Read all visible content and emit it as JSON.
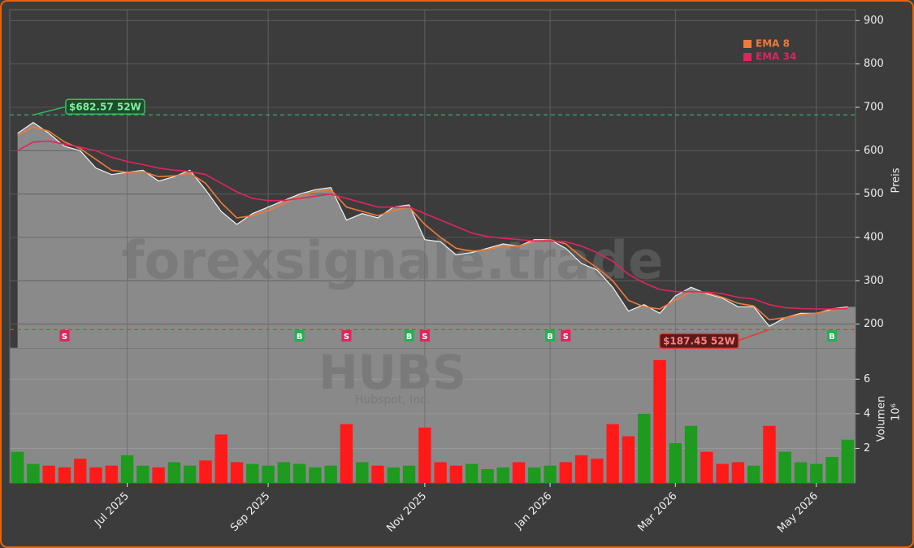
{
  "chart_data": [
    {
      "type": "line",
      "area": true,
      "ticker": "HUBS",
      "company": "Hubspot, Inc.",
      "watermark": "forexsignale.trade",
      "categories": [
        null,
        null,
        null,
        null,
        null,
        null,
        null,
        "Jul 2025",
        null,
        null,
        null,
        null,
        null,
        null,
        null,
        null,
        "Sep 2025",
        null,
        null,
        null,
        null,
        null,
        null,
        null,
        null,
        null,
        "Nov 2025",
        null,
        null,
        null,
        null,
        null,
        null,
        null,
        "Jan 2026",
        null,
        null,
        null,
        null,
        null,
        null,
        null,
        "Mar 2026",
        null,
        null,
        null,
        null,
        null,
        null,
        null,
        null,
        "May 2026",
        null,
        null
      ],
      "series": [
        {
          "name": "Preis",
          "color": "#f2f2f2",
          "values": [
            640,
            665,
            640,
            610,
            600,
            560,
            545,
            550,
            555,
            530,
            540,
            555,
            510,
            460,
            430,
            455,
            470,
            485,
            500,
            510,
            515,
            440,
            455,
            445,
            470,
            475,
            395,
            390,
            360,
            365,
            375,
            385,
            380,
            395,
            395,
            375,
            340,
            325,
            285,
            230,
            245,
            225,
            265,
            285,
            270,
            260,
            240,
            240,
            195,
            215,
            225,
            225,
            235,
            240
          ]
        },
        {
          "name": "EMA 8",
          "color": "#f07a3a",
          "values": [
            635,
            655,
            645,
            620,
            605,
            580,
            555,
            550,
            552,
            540,
            542,
            548,
            525,
            480,
            445,
            450,
            462,
            478,
            495,
            505,
            510,
            470,
            460,
            450,
            462,
            470,
            430,
            400,
            375,
            368,
            372,
            380,
            380,
            390,
            395,
            385,
            355,
            330,
            300,
            255,
            240,
            235,
            255,
            275,
            272,
            262,
            248,
            242,
            210,
            215,
            222,
            225,
            232,
            238
          ]
        },
        {
          "name": "EMA 34",
          "color": "#e0245e",
          "values": [
            600,
            620,
            622,
            615,
            608,
            600,
            585,
            575,
            568,
            560,
            555,
            552,
            545,
            525,
            505,
            490,
            485,
            485,
            490,
            495,
            500,
            490,
            480,
            470,
            470,
            470,
            455,
            440,
            425,
            410,
            402,
            398,
            395,
            392,
            392,
            390,
            380,
            365,
            345,
            315,
            295,
            280,
            275,
            275,
            274,
            270,
            262,
            258,
            245,
            238,
            236,
            235,
            235,
            236
          ]
        }
      ],
      "legend_series": [
        1,
        2
      ],
      "high_52w": {
        "value": 682.57,
        "label": "$682.57 52W",
        "color": "#2fbf5f",
        "index": 1
      },
      "low_52w": {
        "value": 187.45,
        "label": "$187.45 52W",
        "color": "#e53935",
        "index": 48
      },
      "signals": [
        {
          "index": 3,
          "label": "S"
        },
        {
          "index": 18,
          "label": "B"
        },
        {
          "index": 21,
          "label": "S"
        },
        {
          "index": 25,
          "label": "B"
        },
        {
          "index": 26,
          "label": "S"
        },
        {
          "index": 34,
          "label": "B"
        },
        {
          "index": 35,
          "label": "S"
        },
        {
          "index": 52,
          "label": "B"
        }
      ],
      "buy_color": "#22b050",
      "sell_color": "#e0245e",
      "ylabel": "Preis",
      "ylim": [
        145,
        925
      ],
      "yticks": [
        200,
        300,
        400,
        500,
        600,
        700,
        800,
        900
      ],
      "grid": true
    },
    {
      "type": "bar",
      "ylabel": "Volumen",
      "yunit": "10⁶",
      "up_color": "#1e9a1e",
      "down_color": "#ff1a1a",
      "values": [
        1.8,
        1.1,
        1.0,
        0.9,
        1.4,
        0.9,
        1.0,
        1.6,
        1.0,
        0.9,
        1.2,
        1.0,
        1.3,
        2.8,
        1.2,
        1.1,
        1.0,
        1.2,
        1.1,
        0.9,
        1.0,
        3.4,
        1.2,
        1.0,
        0.9,
        1.0,
        3.2,
        1.2,
        1.0,
        1.1,
        0.8,
        0.9,
        1.2,
        0.9,
        1.0,
        1.2,
        1.6,
        1.4,
        3.4,
        2.7,
        4.0,
        7.1,
        2.3,
        3.3,
        1.8,
        1.1,
        1.2,
        1.0,
        3.3,
        1.8,
        1.2,
        1.1,
        1.5,
        2.5
      ],
      "ylim": [
        0,
        7.8
      ],
      "yticks": [
        2,
        4,
        6
      ]
    }
  ]
}
